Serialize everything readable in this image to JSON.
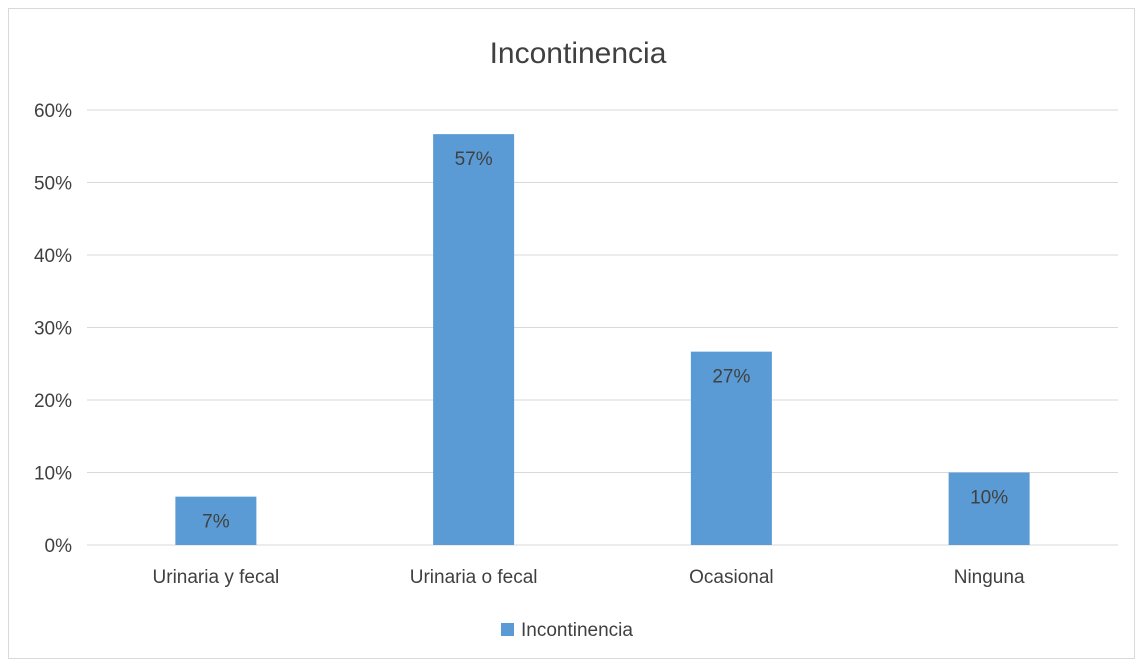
{
  "chart_data": {
    "type": "bar",
    "title": "Incontinencia",
    "categories": [
      "Urinaria y fecal",
      "Urinaria o fecal",
      "Ocasional",
      "Ninguna"
    ],
    "series": [
      {
        "name": "Incontinencia",
        "values": [
          0.0667,
          0.5667,
          0.2667,
          0.1
        ]
      }
    ],
    "data_labels": [
      "7%",
      "57%",
      "27%",
      "10%"
    ],
    "y_ticks": [
      "0%",
      "10%",
      "20%",
      "30%",
      "40%",
      "50%",
      "60%"
    ],
    "ylim": [
      0,
      0.6
    ],
    "xlabel": "",
    "ylabel": "",
    "grid": true,
    "legend_position": "bottom",
    "colors": {
      "bar": "#5b9bd5",
      "grid": "#d9d9d9",
      "text": "#404040"
    }
  }
}
